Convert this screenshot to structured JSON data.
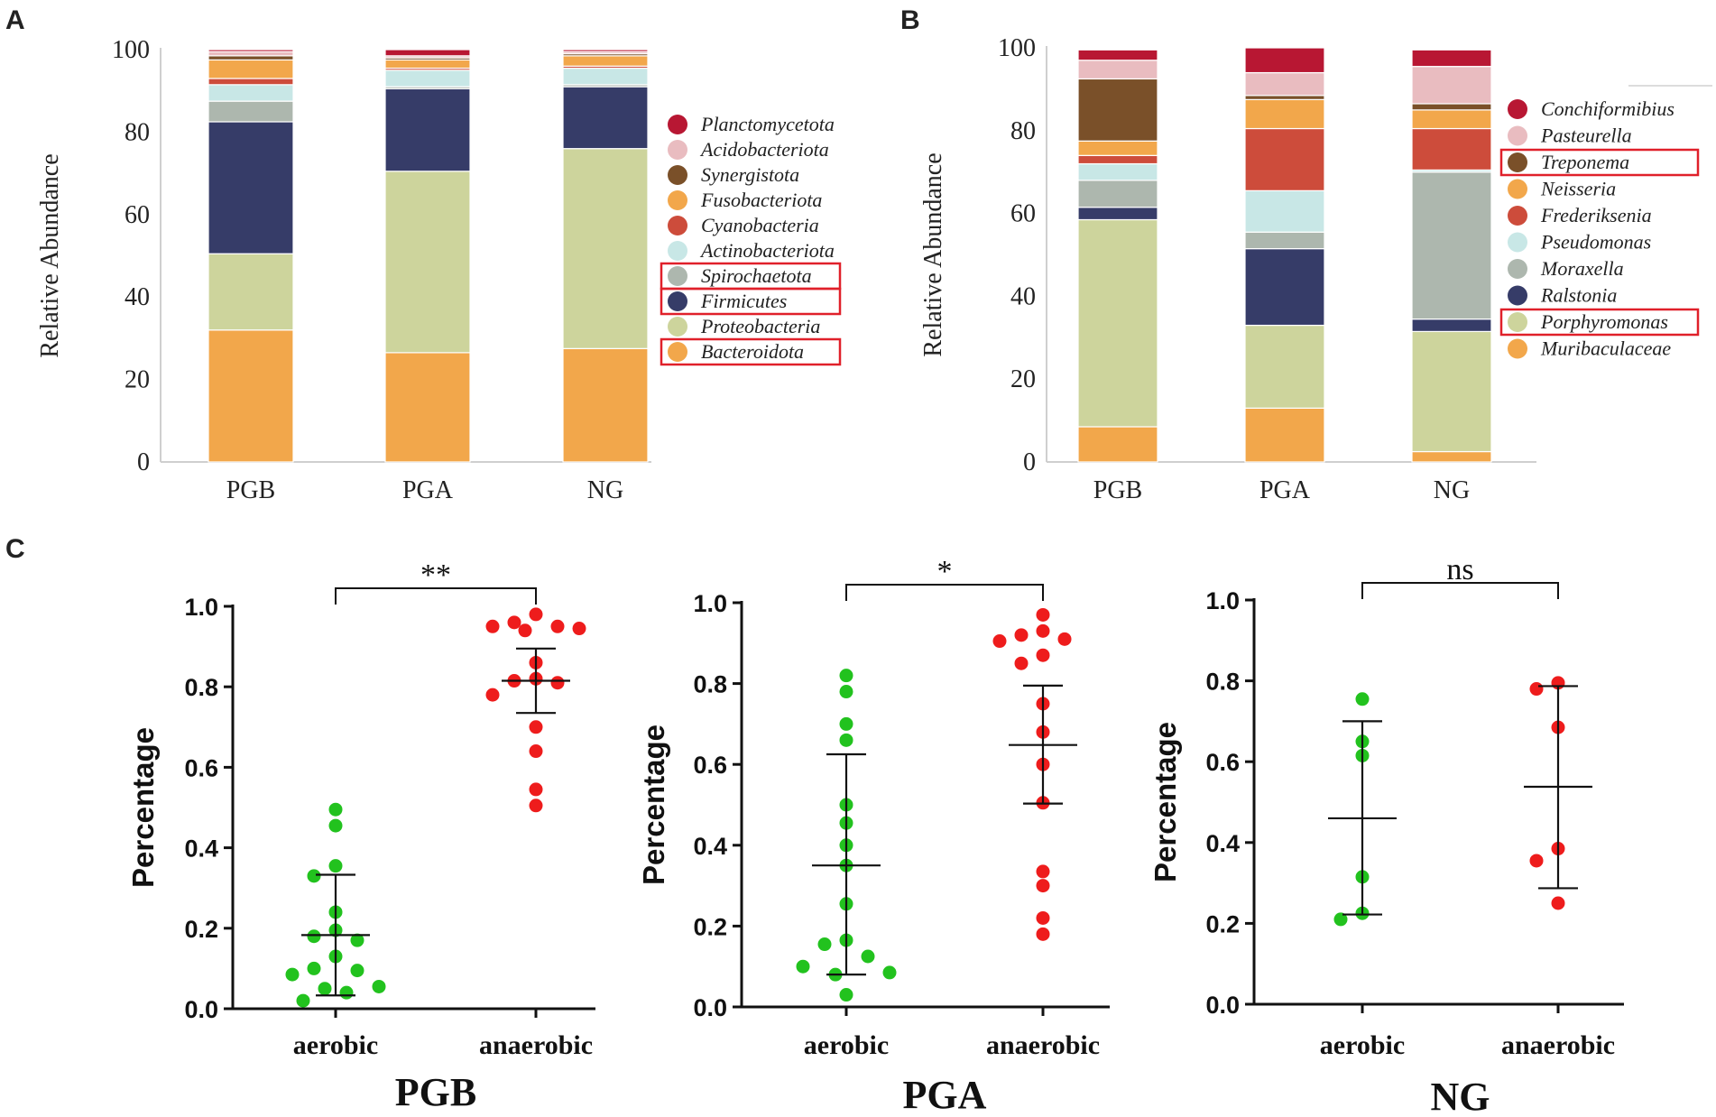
{
  "panel_labels": [
    "A",
    "B",
    "C"
  ],
  "chart_data": [
    {
      "panel": "A",
      "type": "bar",
      "stacked": true,
      "ylabel": "Relative Abundance",
      "ylim": [
        0,
        100
      ],
      "yticks": [
        "0",
        "20",
        "40",
        "60",
        "80",
        "100"
      ],
      "categories": [
        "PGB",
        "PGA",
        "NG"
      ],
      "series": [
        {
          "name": "Bacteroidota",
          "color": "#f2a74b",
          "values": [
            32,
            26.5,
            27.5
          ],
          "highlighted": true
        },
        {
          "name": "Proteobacteria",
          "color": "#cdd49c",
          "values": [
            18.5,
            44,
            48.5
          ],
          "highlighted": false
        },
        {
          "name": "Firmicutes",
          "color": "#363c68",
          "values": [
            32,
            20,
            15
          ],
          "highlighted": true
        },
        {
          "name": "Spirochaetota",
          "color": "#adb7ae",
          "values": [
            5,
            0.5,
            0.5
          ],
          "highlighted": true
        },
        {
          "name": "Actinobacteriota",
          "color": "#c8e7e6",
          "values": [
            4,
            4,
            4
          ],
          "highlighted": false
        },
        {
          "name": "Cyanobacteria",
          "color": "#cd4c3b",
          "values": [
            1.5,
            0.5,
            0.5
          ],
          "highlighted": false
        },
        {
          "name": "Fusobacteriota",
          "color": "#f2a74b",
          "values": [
            4.5,
            2,
            2.5
          ],
          "highlighted": false
        },
        {
          "name": "Synergistota",
          "color": "#7a5029",
          "values": [
            1,
            0.5,
            0.5
          ],
          "highlighted": false
        },
        {
          "name": "Acidobacteriota",
          "color": "#e9bcc0",
          "values": [
            1,
            0.5,
            0.5
          ],
          "highlighted": false
        },
        {
          "name": "Planctomycetota",
          "color": "#b81733",
          "values": [
            0.5,
            1.5,
            0.5
          ],
          "highlighted": false
        }
      ]
    },
    {
      "panel": "B",
      "type": "bar",
      "stacked": true,
      "ylabel": "Relative Abundance",
      "ylim": [
        0,
        100
      ],
      "yticks": [
        "0",
        "20",
        "40",
        "60",
        "80",
        "100"
      ],
      "categories": [
        "PGB",
        "PGA",
        "NG"
      ],
      "series": [
        {
          "name": "Muribaculaceae",
          "color": "#f2a74b",
          "values": [
            8.5,
            13,
            2.5
          ],
          "highlighted": false
        },
        {
          "name": "Porphyromonas",
          "color": "#cdd49c",
          "values": [
            50,
            20,
            29
          ],
          "highlighted": true
        },
        {
          "name": "Ralstonia",
          "color": "#363c68",
          "values": [
            3,
            18.5,
            3
          ],
          "highlighted": false
        },
        {
          "name": "Moraxella",
          "color": "#adb7ae",
          "values": [
            6.5,
            4,
            35.5
          ],
          "highlighted": false
        },
        {
          "name": "Pseudomonas",
          "color": "#c8e7e6",
          "values": [
            4,
            10,
            0.5
          ],
          "highlighted": false
        },
        {
          "name": "Frederiksenia",
          "color": "#cd4c3b",
          "values": [
            2,
            15,
            10
          ],
          "highlighted": false
        },
        {
          "name": "Neisseria",
          "color": "#f2a74b",
          "values": [
            3.5,
            7,
            4.5
          ],
          "highlighted": false
        },
        {
          "name": "Treponema",
          "color": "#7a5029",
          "values": [
            15,
            1,
            1.5
          ],
          "highlighted": true
        },
        {
          "name": "Pasteurella",
          "color": "#e9bcc0",
          "values": [
            4.5,
            5.5,
            9
          ],
          "highlighted": false
        },
        {
          "name": "Conchiformibius",
          "color": "#b81733",
          "values": [
            2.5,
            6,
            4
          ],
          "highlighted": false
        }
      ]
    },
    {
      "panel": "C",
      "type": "scatter",
      "title": "PGB",
      "ylabel": "Percentage",
      "ylim": [
        0,
        1
      ],
      "yticks": [
        "0.0",
        "0.2",
        "0.4",
        "0.6",
        "0.8",
        "1.0"
      ],
      "categories": [
        "aerobic",
        "anaerobic"
      ],
      "significance": "**",
      "series": [
        {
          "name": "aerobic",
          "color": "#22c21e",
          "mean": 0.183,
          "sd_low": 0.033,
          "sd_high": 0.333,
          "values": [
            0.495,
            0.455,
            0.355,
            0.33,
            0.24,
            0.195,
            0.18,
            0.17,
            0.13,
            0.1,
            0.095,
            0.085,
            0.055,
            0.05,
            0.04,
            0.02
          ]
        },
        {
          "name": "anaerobic",
          "color": "#ee1c1c",
          "mean": 0.815,
          "sd_low": 0.735,
          "sd_high": 0.895,
          "values": [
            0.98,
            0.96,
            0.95,
            0.95,
            0.945,
            0.94,
            0.86,
            0.82,
            0.815,
            0.81,
            0.78,
            0.7,
            0.64,
            0.545,
            0.505
          ]
        }
      ]
    },
    {
      "panel": "C",
      "type": "scatter",
      "title": "PGA",
      "ylabel": "Percentage",
      "ylim": [
        0,
        1
      ],
      "yticks": [
        "0.0",
        "0.2",
        "0.4",
        "0.6",
        "0.8",
        "1.0"
      ],
      "categories": [
        "aerobic",
        "anaerobic"
      ],
      "significance": "*",
      "series": [
        {
          "name": "aerobic",
          "color": "#22c21e",
          "mean": 0.35,
          "sd_low": 0.08,
          "sd_high": 0.625,
          "values": [
            0.82,
            0.78,
            0.7,
            0.66,
            0.5,
            0.455,
            0.4,
            0.35,
            0.255,
            0.165,
            0.155,
            0.125,
            0.1,
            0.085,
            0.08,
            0.03
          ]
        },
        {
          "name": "anaerobic",
          "color": "#ee1c1c",
          "mean": 0.648,
          "sd_low": 0.503,
          "sd_high": 0.795,
          "values": [
            0.97,
            0.93,
            0.92,
            0.91,
            0.905,
            0.87,
            0.85,
            0.75,
            0.68,
            0.6,
            0.505,
            0.335,
            0.3,
            0.22,
            0.18
          ]
        }
      ]
    },
    {
      "panel": "C",
      "type": "scatter",
      "title": "NG",
      "ylabel": "Percentage",
      "ylim": [
        0,
        1
      ],
      "yticks": [
        "0.0",
        "0.2",
        "0.4",
        "0.6",
        "0.8",
        "1.0"
      ],
      "categories": [
        "aerobic",
        "anaerobic"
      ],
      "significance": "ns",
      "series": [
        {
          "name": "aerobic",
          "color": "#22c21e",
          "mean": 0.46,
          "sd_low": 0.222,
          "sd_high": 0.7,
          "values": [
            0.755,
            0.65,
            0.615,
            0.315,
            0.225,
            0.21
          ]
        },
        {
          "name": "anaerobic",
          "color": "#ee1c1c",
          "mean": 0.538,
          "sd_low": 0.287,
          "sd_high": 0.787,
          "values": [
            0.795,
            0.78,
            0.685,
            0.385,
            0.355,
            0.25
          ]
        }
      ]
    }
  ]
}
